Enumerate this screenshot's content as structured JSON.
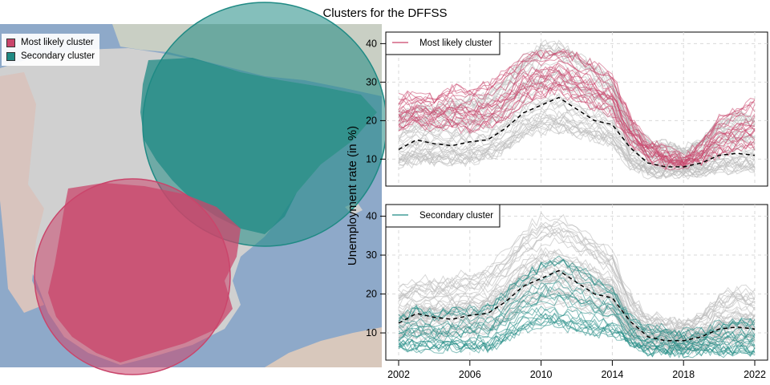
{
  "title": "Clusters for the DFFSS",
  "colors": {
    "most_likely": "#c9456b",
    "secondary": "#1f8a84",
    "grey": "#bdbdbd",
    "median": "#000000",
    "sea": "#8ea9c9",
    "land": "#cfcfcf"
  },
  "map": {
    "legend": [
      {
        "label": "Most likely cluster",
        "color": "#c9456b"
      },
      {
        "label": "Secondary cluster",
        "color": "#1f8a84"
      }
    ]
  },
  "chart_data": {
    "type": "line",
    "ylabel": "Unemployment rate (in %)",
    "x_ticks": [
      2002,
      2006,
      2010,
      2014,
      2018,
      2022
    ],
    "xlim": [
      2002,
      2022
    ],
    "ylim": [
      3,
      43
    ],
    "y_ticks": [
      10,
      20,
      30,
      40
    ],
    "grid": true,
    "panels": [
      {
        "legend": "Most likely cluster",
        "highlight_color": "#c9456b",
        "highlight_envelope": {
          "x": [
            2002,
            2003,
            2004,
            2005,
            2006,
            2007,
            2008,
            2009,
            2010,
            2011,
            2012,
            2013,
            2014,
            2015,
            2016,
            2017,
            2018,
            2019,
            2020,
            2021,
            2022
          ],
          "low": [
            17,
            19,
            18,
            18,
            17,
            18,
            20,
            24,
            26,
            27,
            25,
            23,
            21,
            14,
            10,
            8,
            8,
            9,
            11,
            12,
            13
          ],
          "high": [
            27,
            28,
            27,
            30,
            29,
            31,
            34,
            38,
            39,
            40,
            38,
            36,
            33,
            22,
            15,
            13,
            11,
            15,
            22,
            25,
            27
          ]
        },
        "median_dashed": {
          "x": [
            2002,
            2003,
            2004,
            2005,
            2006,
            2007,
            2008,
            2009,
            2010,
            2011,
            2012,
            2013,
            2014,
            2015,
            2016,
            2017,
            2018,
            2019,
            2020,
            2021,
            2022
          ],
          "y": [
            12.5,
            15,
            14,
            13.5,
            14.5,
            15,
            18,
            22,
            24,
            26,
            23,
            20,
            19,
            13,
            9,
            8,
            8,
            9,
            11,
            11.5,
            11
          ]
        }
      },
      {
        "legend": "Secondary cluster",
        "highlight_color": "#1f8a84",
        "highlight_envelope": {
          "x": [
            2002,
            2003,
            2004,
            2005,
            2006,
            2007,
            2008,
            2009,
            2010,
            2011,
            2012,
            2013,
            2014,
            2015,
            2016,
            2017,
            2018,
            2019,
            2020,
            2021,
            2022
          ],
          "low": [
            6,
            6,
            6,
            6,
            6,
            6,
            8,
            11,
            12,
            12,
            11,
            10,
            10,
            7,
            5,
            5,
            5,
            5,
            5,
            5,
            5
          ],
          "high": [
            14,
            16,
            15,
            16,
            16,
            17,
            20,
            25,
            28,
            29,
            27,
            24,
            22,
            14,
            11,
            11,
            10,
            11,
            12,
            13,
            13
          ]
        },
        "median_dashed": {
          "x": [
            2002,
            2003,
            2004,
            2005,
            2006,
            2007,
            2008,
            2009,
            2010,
            2011,
            2012,
            2013,
            2014,
            2015,
            2016,
            2017,
            2018,
            2019,
            2020,
            2021,
            2022
          ],
          "y": [
            12.5,
            15,
            14,
            13.5,
            14.5,
            15,
            18,
            22,
            24,
            26,
            23,
            20,
            19,
            13,
            9,
            8,
            8,
            9,
            11,
            11.5,
            11
          ]
        }
      }
    ]
  }
}
